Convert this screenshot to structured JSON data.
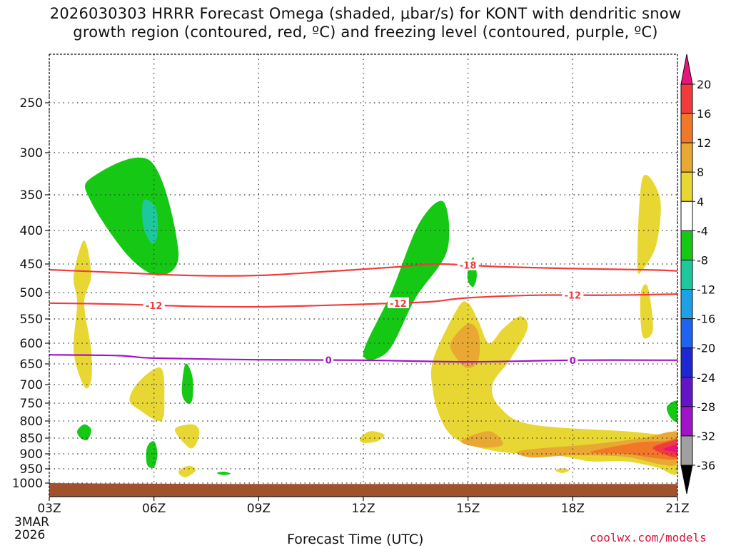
{
  "chart_data": {
    "type": "heatmap",
    "title_lines": [
      "2026030303 HRRR Forecast Omega (shaded, μbar/s) for KONT with dendritic snow",
      "growth region (contoured, red, ºC) and freezing level (contoured, purple, ºC)"
    ],
    "xlabel": "Forecast Time (UTC)",
    "x_ticks": [
      "03Z",
      "06Z",
      "09Z",
      "12Z",
      "15Z",
      "18Z",
      "21Z"
    ],
    "x_range": [
      0,
      18
    ],
    "x_first_date": [
      "3MAR",
      "2026"
    ],
    "y_ticks": [
      250,
      300,
      350,
      400,
      450,
      500,
      550,
      600,
      650,
      700,
      750,
      800,
      850,
      900,
      950,
      1000
    ],
    "y_range_hpa": [
      200,
      1030
    ],
    "colorbar": {
      "ticks": [
        "20",
        "16",
        "12",
        "8",
        "4",
        "-4",
        "-8",
        "-12",
        "-16",
        "-20",
        "-24",
        "-28",
        "-32",
        "-36"
      ],
      "colors": [
        "#e8147a",
        "#f03c3c",
        "#f07828",
        "#e8a832",
        "#e8d632",
        "#ffffff",
        "#14c814",
        "#1ec89c",
        "#1ea0e6",
        "#1e64f0",
        "#1e28d2",
        "#6414c8",
        "#a014c8",
        "#a0a0a0",
        "#000000"
      ]
    },
    "omega_regions": [
      {
        "name": "green-upper-06z",
        "color": "#14c814",
        "points": [
          [
            1.2,
            330
          ],
          [
            2.9,
            310
          ],
          [
            3.7,
            430
          ],
          [
            3.2,
            470
          ],
          [
            2.3,
            440
          ],
          [
            1.2,
            360
          ]
        ]
      },
      {
        "name": "teal-core-06z",
        "color": "#1ec89c",
        "points": [
          [
            2.7,
            358
          ],
          [
            3.05,
            368
          ],
          [
            3.1,
            405
          ],
          [
            2.95,
            420
          ],
          [
            2.7,
            395
          ]
        ]
      },
      {
        "name": "yellow-04z-column",
        "color": "#e8d632",
        "points": [
          [
            1.0,
            415
          ],
          [
            1.2,
            470
          ],
          [
            1.0,
            520
          ],
          [
            1.2,
            615
          ],
          [
            1.2,
            690
          ],
          [
            1.0,
            705
          ],
          [
            0.7,
            620
          ],
          [
            0.8,
            520
          ],
          [
            0.7,
            470
          ]
        ]
      },
      {
        "name": "green-12z-column",
        "color": "#14c814",
        "points": [
          [
            9.0,
            625
          ],
          [
            9.8,
            500
          ],
          [
            10.6,
            390
          ],
          [
            11.3,
            360
          ],
          [
            11.4,
            430
          ],
          [
            10.5,
            510
          ],
          [
            9.7,
            620
          ]
        ]
      },
      {
        "name": "green-15z-small",
        "color": "#14c814",
        "points": [
          [
            12.0,
            460
          ],
          [
            12.15,
            440
          ],
          [
            12.25,
            470
          ],
          [
            12.15,
            490
          ],
          [
            12.0,
            480
          ]
        ]
      },
      {
        "name": "yellow-20z-upper",
        "color": "#e8d632",
        "points": [
          [
            16.85,
            450
          ],
          [
            17.0,
            330
          ],
          [
            17.5,
            355
          ],
          [
            17.4,
            420
          ],
          [
            17.0,
            460
          ]
        ]
      },
      {
        "name": "yellow-20z-lower",
        "color": "#e8d632",
        "points": [
          [
            16.95,
            500
          ],
          [
            17.15,
            490
          ],
          [
            17.3,
            570
          ],
          [
            17.05,
            590
          ],
          [
            16.95,
            560
          ]
        ]
      },
      {
        "name": "yellow-14z-plume",
        "color": "#e8d632",
        "points": [
          [
            11.0,
            640
          ],
          [
            11.7,
            530
          ],
          [
            12.0,
            520
          ],
          [
            12.3,
            555
          ],
          [
            12.6,
            600
          ],
          [
            13.0,
            570
          ],
          [
            13.5,
            545
          ],
          [
            13.7,
            570
          ],
          [
            13.2,
            640
          ],
          [
            12.7,
            700
          ],
          [
            12.9,
            760
          ],
          [
            13.8,
            810
          ],
          [
            16.5,
            830
          ],
          [
            17.6,
            840
          ],
          [
            18,
            835
          ],
          [
            18,
            965
          ],
          [
            17.4,
            945
          ],
          [
            16.5,
            925
          ],
          [
            15.5,
            925
          ],
          [
            14.5,
            905
          ],
          [
            13.0,
            895
          ],
          [
            12.0,
            870
          ],
          [
            11.5,
            840
          ],
          [
            11.2,
            790
          ],
          [
            11.0,
            720
          ]
        ]
      },
      {
        "name": "orange-14z",
        "color": "#e8a832",
        "points": [
          [
            11.5,
            600
          ],
          [
            12.0,
            560
          ],
          [
            12.3,
            580
          ],
          [
            12.3,
            640
          ],
          [
            12.0,
            660
          ],
          [
            11.7,
            640
          ]
        ]
      },
      {
        "name": "orange-15z-low",
        "color": "#e8a832",
        "points": [
          [
            11.8,
            860
          ],
          [
            12.6,
            830
          ],
          [
            13.0,
            870
          ],
          [
            12.4,
            880
          ]
        ]
      },
      {
        "name": "orange-18z-band",
        "color": "#e8a832",
        "points": [
          [
            13.5,
            890
          ],
          [
            15.5,
            870
          ],
          [
            17.0,
            850
          ],
          [
            18,
            835
          ],
          [
            18,
            930
          ],
          [
            17.5,
            935
          ],
          [
            16.5,
            910
          ],
          [
            15.0,
            905
          ],
          [
            13.8,
            912
          ]
        ]
      },
      {
        "name": "orange-dark-21z",
        "color": "#f07828",
        "points": [
          [
            15.5,
            895
          ],
          [
            16.8,
            865
          ],
          [
            17.6,
            860
          ],
          [
            18,
            855
          ],
          [
            18,
            915
          ],
          [
            17.4,
            915
          ],
          [
            16.5,
            900
          ]
        ]
      },
      {
        "name": "red-21z",
        "color": "#f03c3c",
        "points": [
          [
            17.3,
            880
          ],
          [
            17.8,
            860
          ],
          [
            18,
            858
          ],
          [
            18,
            910
          ],
          [
            17.6,
            900
          ]
        ]
      },
      {
        "name": "magenta-21z",
        "color": "#e8147a",
        "points": [
          [
            17.6,
            885
          ],
          [
            17.9,
            872
          ],
          [
            18,
            872
          ],
          [
            18,
            895
          ],
          [
            17.8,
            892
          ]
        ]
      },
      {
        "name": "yellow-06z-low",
        "color": "#e8d632",
        "points": [
          [
            2.3,
            740
          ],
          [
            2.6,
            690
          ],
          [
            3.2,
            660
          ],
          [
            3.3,
            740
          ],
          [
            3.2,
            800
          ],
          [
            2.6,
            770
          ]
        ]
      },
      {
        "name": "green-07z-small",
        "color": "#14c814",
        "points": [
          [
            3.8,
            720
          ],
          [
            3.9,
            650
          ],
          [
            4.1,
            680
          ],
          [
            4.1,
            740
          ],
          [
            3.95,
            750
          ]
        ]
      },
      {
        "name": "yellow-07z-850",
        "color": "#e8d632",
        "points": [
          [
            3.6,
            825
          ],
          [
            4.1,
            810
          ],
          [
            4.3,
            830
          ],
          [
            4.2,
            870
          ],
          [
            4.0,
            880
          ]
        ]
      },
      {
        "name": "green-04z-830",
        "color": "#14c814",
        "points": [
          [
            0.8,
            830
          ],
          [
            1.0,
            810
          ],
          [
            1.2,
            825
          ],
          [
            1.1,
            855
          ],
          [
            0.9,
            850
          ]
        ]
      },
      {
        "name": "green-06z-900",
        "color": "#14c814",
        "points": [
          [
            2.8,
            880
          ],
          [
            3.0,
            860
          ],
          [
            3.1,
            900
          ],
          [
            3.0,
            945
          ],
          [
            2.8,
            935
          ]
        ]
      },
      {
        "name": "yellow-07z-950",
        "color": "#e8d632",
        "points": [
          [
            3.7,
            960
          ],
          [
            4.0,
            940
          ],
          [
            4.2,
            955
          ],
          [
            3.9,
            980
          ]
        ]
      },
      {
        "name": "green-08z-960",
        "color": "#14c814",
        "points": [
          [
            4.8,
            965
          ],
          [
            5.0,
            960
          ],
          [
            5.2,
            967
          ],
          [
            5.0,
            972
          ]
        ]
      },
      {
        "name": "yellow-12z-840",
        "color": "#e8d632",
        "points": [
          [
            8.9,
            850
          ],
          [
            9.2,
            830
          ],
          [
            9.6,
            840
          ],
          [
            9.4,
            860
          ],
          [
            9.0,
            865
          ]
        ]
      },
      {
        "name": "yellow-17z-950",
        "color": "#e8d632",
        "points": [
          [
            14.5,
            955
          ],
          [
            14.7,
            948
          ],
          [
            14.9,
            955
          ],
          [
            14.7,
            965
          ]
        ]
      },
      {
        "name": "green-21z-edge",
        "color": "#14c814",
        "points": [
          [
            17.7,
            760
          ],
          [
            18,
            745
          ],
          [
            18,
            800
          ],
          [
            17.8,
            790
          ]
        ]
      }
    ],
    "contours": [
      {
        "name": "dgz-minus18",
        "color": "#f03c3c",
        "label": "-18",
        "label_x": 12.0,
        "points": [
          [
            0,
            460
          ],
          [
            2,
            465
          ],
          [
            4,
            470
          ],
          [
            6,
            470
          ],
          [
            8,
            463
          ],
          [
            10,
            455
          ],
          [
            11,
            450
          ],
          [
            12,
            452
          ],
          [
            13,
            455
          ],
          [
            15,
            458
          ],
          [
            17,
            460
          ],
          [
            18,
            462
          ]
        ]
      },
      {
        "name": "dgz-minus12",
        "color": "#f03c3c",
        "label": "-12",
        "label_x": 3.0,
        "points": [
          [
            0,
            520
          ],
          [
            2,
            522
          ],
          [
            4,
            526
          ],
          [
            6,
            527
          ],
          [
            8,
            524
          ],
          [
            10,
            520
          ],
          [
            11,
            517
          ],
          [
            12,
            510
          ],
          [
            14,
            505
          ],
          [
            16,
            505
          ],
          [
            18,
            503
          ]
        ]
      },
      {
        "name": "dgz-minus12-b",
        "color": "#f03c3c",
        "label": "-12",
        "label_x": 10.0,
        "points": []
      },
      {
        "name": "dgz-minus12-c",
        "color": "#f03c3c",
        "label": "-12",
        "label_x": 15.0,
        "points": []
      },
      {
        "name": "freezing-level",
        "color": "#a014c8",
        "label": "0",
        "label_x": 8.0,
        "points": [
          [
            0,
            628
          ],
          [
            2,
            630
          ],
          [
            3,
            636
          ],
          [
            6,
            640
          ],
          [
            9,
            641
          ],
          [
            12,
            645
          ],
          [
            15,
            641
          ],
          [
            18,
            641
          ]
        ]
      },
      {
        "name": "freezing-level-b",
        "color": "#a014c8",
        "label": "0",
        "label_x": 15.0,
        "points": []
      }
    ],
    "surface_color": "#a0522d"
  },
  "footer": {
    "xlabel": "Forecast Time (UTC)",
    "credit": "coolwx.com/models",
    "date_line1": "3MAR",
    "date_line2": "2026"
  },
  "title": {
    "line1": "2026030303 HRRR Forecast Omega (shaded, μbar/s) for KONT with dendritic snow",
    "line2": "growth region (contoured, red, ºC) and freezing level (contoured, purple, ºC)"
  }
}
